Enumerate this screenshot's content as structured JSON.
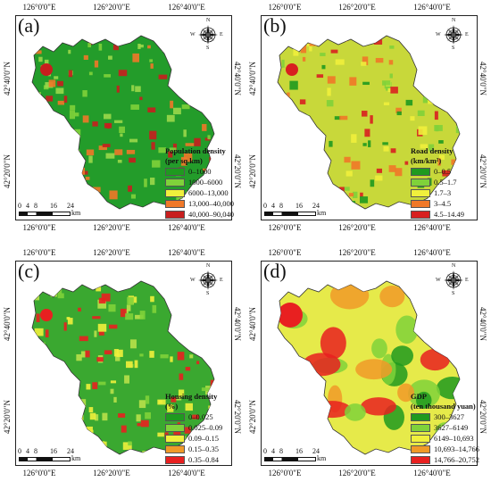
{
  "panels": [
    {
      "letter": "(a)",
      "top_lon": [
        "126°0'0\"E",
        "126°20'0\"E",
        "126°40'0\"E"
      ],
      "bottom_lon": [
        "126°0'0\"E",
        "126°20'0\"E",
        "126°40'0\"E"
      ],
      "left_lat": [
        "42°40'0\"N",
        "42°20'0\"N"
      ],
      "right_lat": [
        "42°40'0\"N",
        "42°20'0\"N"
      ],
      "legend_title": [
        "Population density",
        "(per sq.km)"
      ],
      "legend_items": [
        {
          "label": "0–1000",
          "color": "#1f9a1f"
        },
        {
          "label": "1000–6000",
          "color": "#7fd23a"
        },
        {
          "label": "6000–13,000",
          "color": "#f0f03c"
        },
        {
          "label": "13,000–40,000",
          "color": "#f07828"
        },
        {
          "label": "40,000–90,040",
          "color": "#c81e1e"
        }
      ],
      "base_color": "#239c2a",
      "spot_colors": [
        "#7fd23a",
        "#9ad84a",
        "#f07828",
        "#c81e1e"
      ]
    },
    {
      "letter": "(b)",
      "top_lon": [
        "126°0'0\"E",
        "126°20'0\"E",
        "126°40'0\"E"
      ],
      "bottom_lon": [
        "126°0'0\"E",
        "126°20'0\"E",
        "126°40'0\"E"
      ],
      "left_lat": [
        "42°40'0\"N",
        "42°20'0\"N"
      ],
      "right_lat": [
        "42°40'0\"N",
        "42°20'0\"N"
      ],
      "legend_title": [
        "Road density",
        "(km/km²)"
      ],
      "legend_items": [
        {
          "label": "0–0.5",
          "color": "#1f9a1f"
        },
        {
          "label": "0.5–1.7",
          "color": "#7fd23a"
        },
        {
          "label": "1.7–3",
          "color": "#f0f03c"
        },
        {
          "label": "3–4.5",
          "color": "#f07828"
        },
        {
          "label": "4.5–14.49",
          "color": "#d82020"
        }
      ],
      "base_color": "#c8d83a",
      "spot_colors": [
        "#d82020",
        "#f07828",
        "#f0f03c",
        "#7fd23a",
        "#1f9a1f"
      ]
    },
    {
      "letter": "(c)",
      "top_lon": [
        "126°0'0\"E",
        "126°20'0\"E",
        "126°40'0\"E"
      ],
      "bottom_lon": [
        "126°0'0\"E",
        "126°20'0\"E",
        "126°40'0\"E"
      ],
      "left_lat": [
        "42°40'0\"N",
        "42°20'0\"N"
      ],
      "right_lat": [
        "42°40'0\"N",
        "42°20'0\"N"
      ],
      "legend_title": [
        "Housing density",
        "(%)"
      ],
      "legend_items": [
        {
          "label": "0–0.025",
          "color": "#1f9a1f"
        },
        {
          "label": "0.025–0.09",
          "color": "#7fd23a"
        },
        {
          "label": "0.09–0.15",
          "color": "#f0f03c"
        },
        {
          "label": "0.15–0.35",
          "color": "#f09a28"
        },
        {
          "label": "0.35–0.84",
          "color": "#e82020"
        }
      ],
      "base_color": "#3aa830",
      "spot_colors": [
        "#7fd23a",
        "#b8e04a",
        "#f0f03c",
        "#e82020"
      ]
    },
    {
      "letter": "(d)",
      "top_lon": [
        "126°0'0\"E",
        "126°20'0\"E",
        "126°40'0\"E"
      ],
      "bottom_lon": [
        "126°0'0\"E",
        "126°20'0\"E",
        "126°40'0\"E"
      ],
      "left_lat": [
        "42°40'0\"N",
        "42°20'0\"N"
      ],
      "right_lat": [
        "42°40'0\"N",
        "42°20'0\"N"
      ],
      "legend_title": [
        "GDP",
        "(ten thousand yuan)"
      ],
      "legend_items": [
        {
          "label": "300–3627",
          "color": "#1f9a1f"
        },
        {
          "label": "3627–6149",
          "color": "#7fd23a"
        },
        {
          "label": "6149–10,693",
          "color": "#f0f03c"
        },
        {
          "label": "10,693–14,766",
          "color": "#f09a28"
        },
        {
          "label": "14,766–20,752",
          "color": "#e82020"
        }
      ],
      "base_color": "#e6ea4a",
      "spot_colors": [
        "#7fd23a",
        "#1f9a1f",
        "#f09a28",
        "#e82020"
      ]
    }
  ],
  "scalebar": {
    "ticks": [
      "0",
      "4",
      "8",
      "16",
      "24"
    ],
    "unit": "km"
  },
  "compass": {
    "n": "N",
    "s": "S",
    "e": "E",
    "w": "W"
  }
}
